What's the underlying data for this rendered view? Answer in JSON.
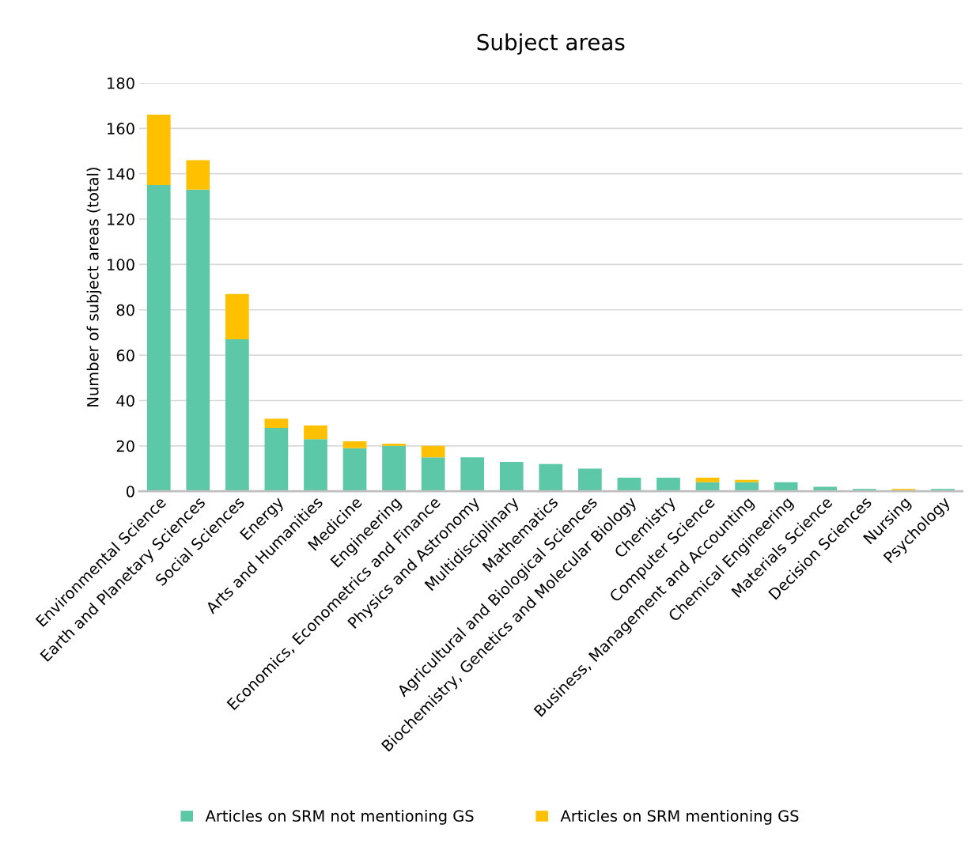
{
  "chart_data": {
    "type": "bar",
    "stacked": true,
    "title": "Subject areas",
    "ylabel": "Number of subject areas (total)",
    "categories": [
      "Environmental Science",
      "Earth and Planetary Sciences",
      "Social Sciences",
      "Energy",
      "Arts and Humanities",
      "Medicine",
      "Engineering",
      "Economics, Econometrics and Finance",
      "Physics and Astronomy",
      "Multidisciplinary",
      "Mathematics",
      "Agricultural and Biological Sciences",
      "Biochemistry, Genetics and Molecular Biology",
      "Chemistry",
      "Computer Science",
      "Business, Management and Accounting",
      "Chemical Engineering",
      "Materials Science",
      "Decision Sciences",
      "Nursing",
      "Psychology"
    ],
    "series": [
      {
        "name": "Articles on SRM not mentioning GS",
        "color": "#5cc8a8",
        "values": [
          135,
          133,
          67,
          28,
          23,
          19,
          20,
          15,
          15,
          13,
          12,
          10,
          6,
          6,
          4,
          4,
          4,
          2,
          1,
          0,
          1
        ]
      },
      {
        "name": "Articles on SRM mentioning GS",
        "color": "#ffc000",
        "values": [
          31,
          13,
          20,
          4,
          6,
          3,
          1,
          5,
          0,
          0,
          0,
          0,
          0,
          0,
          2,
          1,
          0,
          0,
          0,
          1,
          0
        ]
      }
    ],
    "ylim": [
      0,
      180
    ],
    "yticks": [
      0,
      20,
      40,
      60,
      80,
      100,
      120,
      140,
      160,
      180
    ],
    "grid": "y",
    "legend": "bottom"
  }
}
